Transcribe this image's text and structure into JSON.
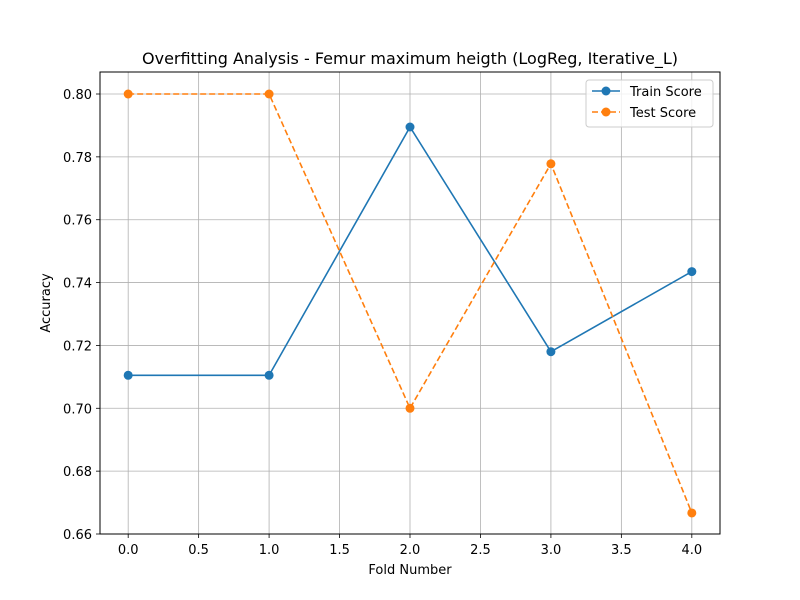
{
  "chart_data": {
    "type": "line",
    "title": "Overfitting Analysis - Femur maximum heigth (LogReg, Iterative_L)",
    "xlabel": "Fold Number",
    "ylabel": "Accuracy",
    "x": [
      0,
      1,
      2,
      3,
      4
    ],
    "xlim": [
      -0.2,
      4.2
    ],
    "ylim": [
      0.66,
      0.807
    ],
    "xticks": [
      "0.0",
      "0.5",
      "1.0",
      "1.5",
      "2.0",
      "2.5",
      "3.0",
      "3.5",
      "4.0"
    ],
    "yticks": [
      "0.66",
      "0.68",
      "0.70",
      "0.72",
      "0.74",
      "0.76",
      "0.78",
      "0.80"
    ],
    "grid": true,
    "legend_position": "top-right",
    "series": [
      {
        "name": "Train Score",
        "values": [
          0.7105,
          0.7105,
          0.7895,
          0.718,
          0.7435
        ],
        "color": "#1f77b4",
        "linestyle": "solid",
        "marker": "circle"
      },
      {
        "name": "Test Score",
        "values": [
          0.8,
          0.8,
          0.7,
          0.7778,
          0.6667
        ],
        "color": "#ff7f0e",
        "linestyle": "dashed",
        "marker": "circle"
      }
    ]
  }
}
